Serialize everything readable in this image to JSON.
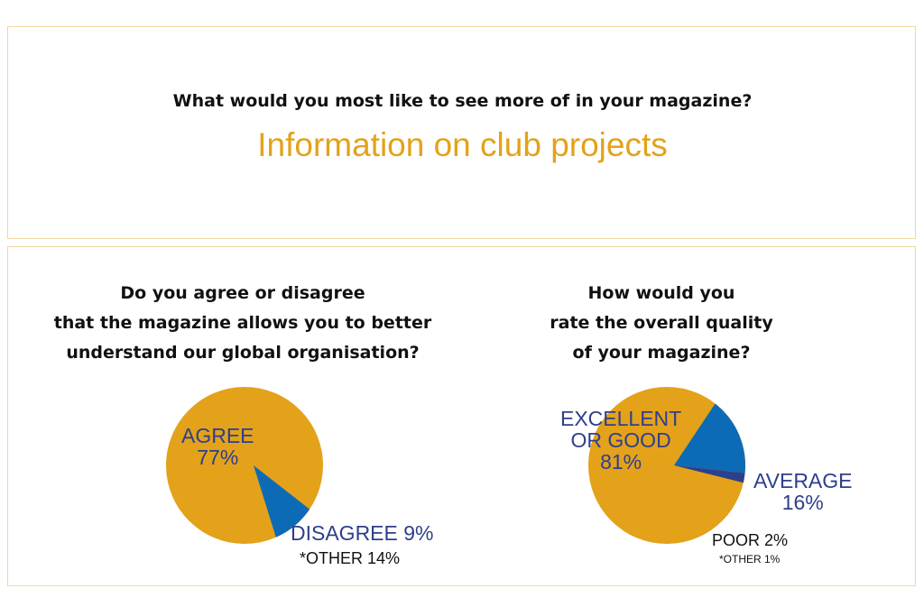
{
  "top": {
    "question": "What would you most like to see more of in your magazine?",
    "answer": "Information on club projects"
  },
  "colors": {
    "gold": "#e3a21a",
    "blue": "#0d6bb5",
    "navy": "#2e3f8c",
    "border": "#f0d9a0"
  },
  "chart_data": [
    {
      "type": "pie",
      "title_lines": [
        "Do you agree or disagree",
        "that the magazine allows you to better",
        "understand our global organisation?"
      ],
      "slices": [
        {
          "label": "AGREE",
          "value": 77,
          "value_text": "77%",
          "color": "#e3a21a"
        },
        {
          "label": "DISAGREE",
          "value": 9,
          "value_text": "9%",
          "color": "#0d6bb5"
        }
      ],
      "note": "*OTHER 14%"
    },
    {
      "type": "pie",
      "title_lines": [
        "How would you",
        "rate the overall quality",
        "of your magazine?"
      ],
      "slices": [
        {
          "label_lines": [
            "EXCELLENT",
            "OR GOOD"
          ],
          "value": 81,
          "value_text": "81%",
          "color": "#e3a21a"
        },
        {
          "label": "AVERAGE",
          "value": 16,
          "value_text": "16%",
          "color": "#0d6bb5"
        },
        {
          "label": "POOR",
          "value": 2,
          "value_text": "2%",
          "color": "#2e3f8c"
        }
      ],
      "note": "*OTHER 1%"
    }
  ]
}
